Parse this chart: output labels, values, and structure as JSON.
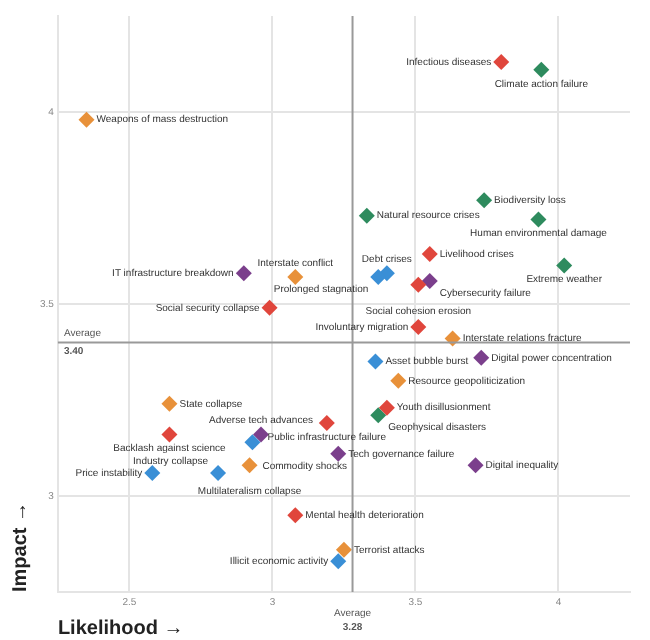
{
  "chart_data": {
    "type": "scatter",
    "xlabel": "Likelihood →",
    "ylabel": "Impact →",
    "xlim": [
      2.25,
      4.25
    ],
    "ylim": [
      2.75,
      4.25
    ],
    "xticks": [
      2.5,
      3,
      3.5,
      4
    ],
    "yticks": [
      3,
      3.5,
      4
    ],
    "grid": true,
    "marker": "diamond",
    "series": [
      {
        "color": "#e8913a",
        "x": [
          2.35,
          3.08,
          3.63,
          3.44,
          3.25,
          2.64,
          2.92
        ],
        "values": [
          3.98,
          3.57,
          3.41,
          3.3,
          2.86,
          3.24,
          3.08
        ]
      },
      {
        "color": "#e0463c",
        "x": [
          2.99,
          3.8,
          3.55,
          3.51,
          3.51,
          3.4,
          2.64,
          3.19,
          3.08
        ],
        "values": [
          3.49,
          4.13,
          3.63,
          3.55,
          3.44,
          3.23,
          3.16,
          3.19,
          2.95
        ]
      },
      {
        "color": "#2e8b5e",
        "x": [
          3.94,
          3.74,
          3.33,
          3.93,
          4.02,
          3.37
        ],
        "values": [
          4.11,
          3.77,
          3.73,
          3.72,
          3.6,
          3.21
        ]
      },
      {
        "color": "#3a8fd6",
        "x": [
          3.4,
          3.37,
          3.36,
          3.23,
          2.93,
          2.58,
          2.81
        ],
        "values": [
          3.58,
          3.57,
          3.35,
          2.83,
          3.14,
          3.06,
          3.06
        ]
      },
      {
        "color": "#7b3f8c",
        "x": [
          2.9,
          3.55,
          3.73,
          3.23,
          3.71,
          2.96
        ],
        "values": [
          3.58,
          3.56,
          3.36,
          3.11,
          3.08,
          3.16
        ]
      }
    ],
    "ref_lines": [
      {
        "axis": "x",
        "value": 3.28,
        "label": "Average\n3.28",
        "color": "#999999"
      },
      {
        "axis": "y",
        "value": 3.4,
        "label": "Average\n3.40",
        "color": "#999999"
      }
    ],
    "annotations": [
      {
        "text": "Weapons of mass destruction",
        "x": 2.35,
        "y": 3.98
      },
      {
        "text": "Infectious diseases",
        "x": 3.8,
        "y": 4.13
      },
      {
        "text": "Climate action failure",
        "x": 3.94,
        "y": 4.11
      },
      {
        "text": "Biodiversity loss",
        "x": 3.74,
        "y": 3.77
      },
      {
        "text": "Natural resource crises",
        "x": 3.33,
        "y": 3.73
      },
      {
        "text": "Human environmental damage",
        "x": 3.93,
        "y": 3.72
      },
      {
        "text": "Livelihood crises",
        "x": 3.55,
        "y": 3.63
      },
      {
        "text": "Extreme weather",
        "x": 4.02,
        "y": 3.6
      },
      {
        "text": "Debt crises",
        "x": 3.4,
        "y": 3.58
      },
      {
        "text": "Prolonged stagnation",
        "x": 3.37,
        "y": 3.57
      },
      {
        "text": "Cybersecurity failure",
        "x": 3.55,
        "y": 3.56
      },
      {
        "text": "IT infrastructure breakdown",
        "x": 2.9,
        "y": 3.58
      },
      {
        "text": "Interstate conflict",
        "x": 3.08,
        "y": 3.57
      },
      {
        "text": "Social cohesion erosion",
        "x": 3.51,
        "y": 3.55
      },
      {
        "text": "Social security collapse",
        "x": 2.99,
        "y": 3.49
      },
      {
        "text": "Involuntary migration",
        "x": 3.51,
        "y": 3.44
      },
      {
        "text": "Interstate relations fracture",
        "x": 3.63,
        "y": 3.41
      },
      {
        "text": "Digital power concentration",
        "x": 3.73,
        "y": 3.36
      },
      {
        "text": "Asset bubble burst",
        "x": 3.36,
        "y": 3.35
      },
      {
        "text": "Resource geopoliticization",
        "x": 3.44,
        "y": 3.3
      },
      {
        "text": "State collapse",
        "x": 2.64,
        "y": 3.24
      },
      {
        "text": "Youth disillusionment",
        "x": 3.4,
        "y": 3.23
      },
      {
        "text": "Geophysical disasters",
        "x": 3.37,
        "y": 3.21
      },
      {
        "text": "Public infrastructure failure",
        "x": 3.19,
        "y": 3.19
      },
      {
        "text": "Backlash against science",
        "x": 2.64,
        "y": 3.16
      },
      {
        "text": "Adverse tech advances",
        "x": 2.96,
        "y": 3.16
      },
      {
        "text": "Commodity shocks",
        "x": 2.93,
        "y": 3.14
      },
      {
        "text": "Tech governance failure",
        "x": 3.23,
        "y": 3.11
      },
      {
        "text": "Digital inequality",
        "x": 3.71,
        "y": 3.08
      },
      {
        "text": "Multilateralism collapse",
        "x": 2.92,
        "y": 3.08
      },
      {
        "text": "Price instability",
        "x": 2.58,
        "y": 3.06
      },
      {
        "text": "Industry collapse",
        "x": 2.81,
        "y": 3.06
      },
      {
        "text": "Mental health deterioration",
        "x": 3.08,
        "y": 2.95
      },
      {
        "text": "Terrorist attacks",
        "x": 3.25,
        "y": 2.86
      },
      {
        "text": "Illicit economic activity",
        "x": 3.23,
        "y": 2.83
      }
    ]
  }
}
